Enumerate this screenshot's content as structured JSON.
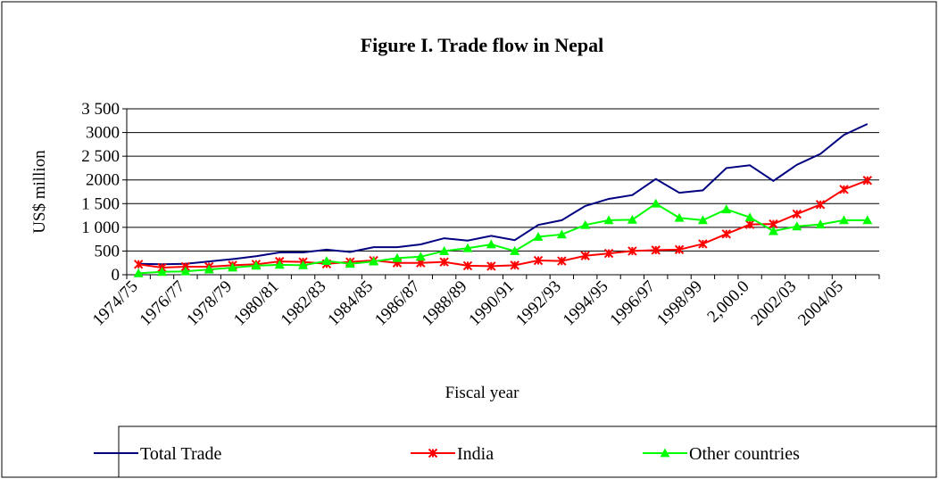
{
  "chart_data": {
    "type": "line",
    "title": "Figure I. Trade flow in Nepal",
    "y_label": "US$ million",
    "x_label": "Fiscal year",
    "categories": [
      "1974/75",
      null,
      "1976/77",
      null,
      "1978/79",
      null,
      "1980/81",
      null,
      "1982/83",
      null,
      "1984/85",
      null,
      "1986/87",
      null,
      "1988/89",
      null,
      "1990/91",
      null,
      "1992/93",
      null,
      "1994/95",
      null,
      "1996/97",
      null,
      "1998/99",
      null,
      "2,000.0",
      null,
      "2002/03",
      null,
      "2004/05",
      null
    ],
    "series": [
      {
        "name": "Total Trade",
        "color": "#000080",
        "marker": "none",
        "values": [
          230,
          220,
          230,
          280,
          330,
          390,
          470,
          470,
          530,
          480,
          580,
          580,
          640,
          770,
          720,
          820,
          730,
          1050,
          1150,
          1450,
          1600,
          1680,
          2020,
          1730,
          1780,
          2250,
          2310,
          1980,
          2320,
          2550,
          2950,
          3180
        ]
      },
      {
        "name": "India",
        "color": "#ff0000",
        "marker": "x",
        "values": [
          220,
          150,
          170,
          170,
          200,
          220,
          280,
          270,
          230,
          270,
          300,
          250,
          250,
          270,
          190,
          180,
          200,
          300,
          290,
          400,
          450,
          500,
          520,
          530,
          650,
          860,
          1060,
          1070,
          1280,
          1480,
          1800,
          1990
        ]
      },
      {
        "name": "Other countries",
        "color": "#00ff00",
        "marker": "triangle",
        "values": [
          30,
          60,
          70,
          110,
          150,
          190,
          210,
          200,
          290,
          230,
          280,
          350,
          380,
          500,
          560,
          640,
          500,
          800,
          850,
          1050,
          1150,
          1160,
          1500,
          1200,
          1150,
          1380,
          1210,
          920,
          1020,
          1060,
          1150,
          1150
        ]
      }
    ],
    "ylim": [
      0,
      3500
    ],
    "yticks": [
      0,
      500,
      {
        "value": 1000,
        "label": "1 000"
      },
      {
        "value": 1500,
        "label": "1 500"
      },
      2000,
      {
        "value": 2500,
        "label": "2 500"
      },
      3000,
      {
        "value": 3500,
        "label": "3 500"
      }
    ],
    "grid": true,
    "legend": "bottom"
  }
}
